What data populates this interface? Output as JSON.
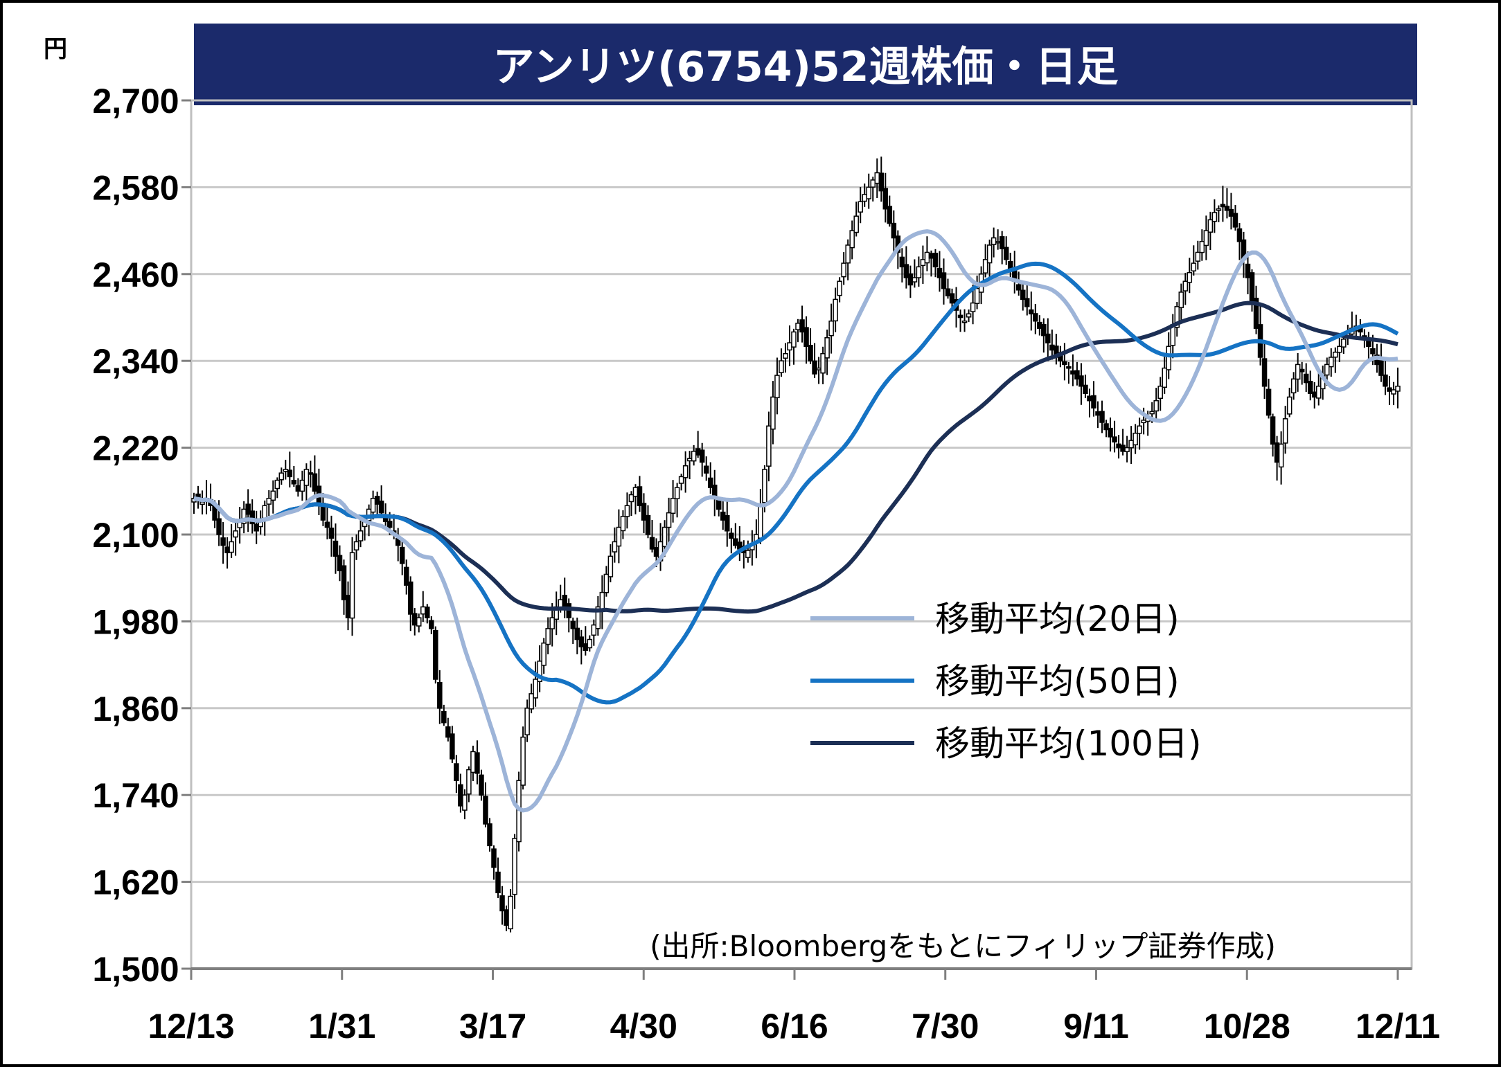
{
  "chart_data": {
    "type": "candlestick",
    "title": "アンリツ(6754)52週株価・日足",
    "unit_label": "円",
    "source": "(出所:Bloombergをもとにフィリップ証券作成)",
    "ylim": [
      1500,
      2700
    ],
    "y_ticks": [
      "2,700",
      "2,580",
      "2,460",
      "2,340",
      "2,220",
      "2,100",
      "1,980",
      "1,860",
      "1,740",
      "1,620",
      "1,500"
    ],
    "x_ticks": [
      "12/13",
      "1/31",
      "3/17",
      "4/30",
      "6/16",
      "7/30",
      "9/11",
      "10/28",
      "12/11"
    ],
    "grid": "horizontal",
    "legend_position": "center-right",
    "colors": {
      "title_bg": "#1b2a6b",
      "ma20": "#9db4d8",
      "ma50": "#1573c4",
      "ma100": "#1c2f55",
      "candle": "#000000",
      "grid": "#c8c8c8"
    },
    "close_series": [
      2150,
      2148,
      2145,
      2150,
      2140,
      2120,
      2100,
      2085,
      2075,
      2090,
      2105,
      2120,
      2135,
      2128,
      2115,
      2105,
      2120,
      2140,
      2150,
      2160,
      2175,
      2185,
      2190,
      2180,
      2170,
      2160,
      2175,
      2190,
      2185,
      2160,
      2140,
      2120,
      2110,
      2095,
      2070,
      2050,
      2010,
      1985,
      2075,
      2090,
      2105,
      2120,
      2135,
      2150,
      2142,
      2130,
      2118,
      2110,
      2100,
      2085,
      2060,
      2030,
      1990,
      1975,
      1985,
      2000,
      1985,
      1970,
      1900,
      1860,
      1840,
      1820,
      1790,
      1760,
      1725,
      1740,
      1775,
      1800,
      1770,
      1740,
      1700,
      1670,
      1640,
      1605,
      1580,
      1560,
      1600,
      1680,
      1760,
      1820,
      1860,
      1880,
      1900,
      1925,
      1950,
      1970,
      1985,
      2000,
      2010,
      2000,
      1985,
      1970,
      1955,
      1945,
      1940,
      1955,
      1975,
      2000,
      2020,
      2045,
      2070,
      2090,
      2110,
      2125,
      2140,
      2155,
      2165,
      2140,
      2120,
      2100,
      2080,
      2070,
      2090,
      2110,
      2130,
      2150,
      2165,
      2180,
      2195,
      2205,
      2215,
      2210,
      2200,
      2185,
      2165,
      2150,
      2135,
      2120,
      2105,
      2095,
      2085,
      2080,
      2075,
      2078,
      2085,
      2100,
      2140,
      2190,
      2250,
      2290,
      2320,
      2340,
      2350,
      2365,
      2380,
      2392,
      2380,
      2360,
      2340,
      2322,
      2330,
      2350,
      2372,
      2395,
      2425,
      2450,
      2475,
      2500,
      2520,
      2540,
      2560,
      2570,
      2580,
      2590,
      2600,
      2575,
      2550,
      2530,
      2510,
      2490,
      2470,
      2455,
      2445,
      2455,
      2470,
      2480,
      2490,
      2482,
      2470,
      2455,
      2440,
      2430,
      2420,
      2410,
      2400,
      2395,
      2405,
      2420,
      2440,
      2460,
      2480,
      2500,
      2510,
      2505,
      2495,
      2480,
      2465,
      2450,
      2438,
      2425,
      2415,
      2405,
      2395,
      2385,
      2375,
      2365,
      2355,
      2345,
      2340,
      2335,
      2330,
      2322,
      2315,
      2305,
      2295,
      2285,
      2275,
      2265,
      2255,
      2245,
      2235,
      2228,
      2220,
      2215,
      2220,
      2230,
      2240,
      2250,
      2258,
      2262,
      2270,
      2285,
      2305,
      2330,
      2360,
      2390,
      2415,
      2435,
      2450,
      2462,
      2475,
      2490,
      2505,
      2520,
      2535,
      2545,
      2550,
      2553,
      2548,
      2540,
      2525,
      2505,
      2480,
      2455,
      2420,
      2385,
      2345,
      2305,
      2265,
      2225,
      2200,
      2225,
      2260,
      2290,
      2315,
      2335,
      2325,
      2310,
      2295,
      2290,
      2305,
      2320,
      2335,
      2345,
      2352,
      2360,
      2370,
      2378,
      2385,
      2388,
      2380,
      2370,
      2360,
      2350,
      2335,
      2320,
      2305,
      2298,
      2300,
      2305
    ]
  }
}
